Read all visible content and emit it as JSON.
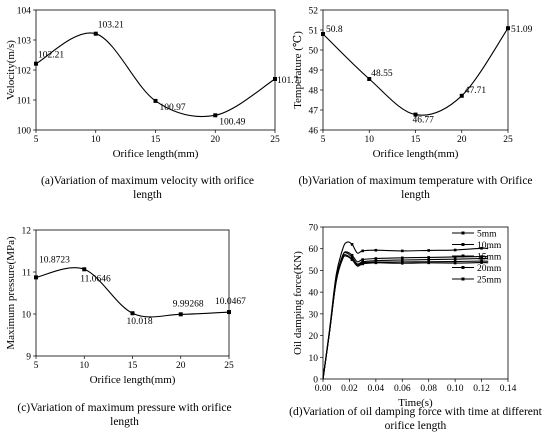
{
  "chart_data": [
    {
      "type": "line",
      "xlabel": "Orifice length(mm)",
      "ylabel": "Velocity(m/s)",
      "caption": [
        "(a)Variation of maximum velocity with orifice",
        "length"
      ],
      "xlim": [
        5,
        25
      ],
      "ylim": [
        100,
        104
      ],
      "xticks": [
        "5",
        "10",
        "15",
        "20",
        "25"
      ],
      "yticks": [
        "100",
        "101",
        "102",
        "103",
        "104"
      ],
      "x": [
        5,
        10,
        15,
        20,
        25
      ],
      "values": [
        102.21,
        103.21,
        100.97,
        100.49,
        101.7
      ],
      "labels": [
        "102.21",
        "103.21",
        "100.97",
        "100.49",
        "101.7"
      ]
    },
    {
      "type": "line",
      "xlabel": "Orifice length(mm)",
      "ylabel": "Temperature (℃)",
      "caption": [
        "(b)Variation of maximum temperature with Orifice",
        "length"
      ],
      "xlim": [
        5,
        25
      ],
      "ylim": [
        46,
        52
      ],
      "xticks": [
        "5",
        "10",
        "15",
        "20",
        "25"
      ],
      "yticks": [
        "46",
        "47",
        "48",
        "49",
        "50",
        "51",
        "52"
      ],
      "x": [
        5,
        10,
        15,
        20,
        25
      ],
      "values": [
        50.8,
        48.55,
        46.77,
        47.71,
        51.09
      ],
      "labels": [
        "50.8",
        "48.55",
        "46.77",
        "47.71",
        "51.09"
      ]
    },
    {
      "type": "line",
      "xlabel": "Orifice length(mm)",
      "ylabel": "Maximum pressure(MPa)",
      "caption": [
        "(c)Variation of maximum pressure with orifice",
        "length"
      ],
      "xlim": [
        5,
        25
      ],
      "ylim": [
        9,
        12
      ],
      "xticks": [
        "5",
        "10",
        "15",
        "20",
        "25"
      ],
      "yticks": [
        "9",
        "10",
        "11",
        "12"
      ],
      "x": [
        5,
        10,
        15,
        20,
        25
      ],
      "values": [
        10.8723,
        11.0646,
        10.018,
        9.99268,
        10.0467
      ],
      "labels": [
        "10.8723",
        "11.0646",
        "10.018",
        "9.99268",
        "10.0467"
      ]
    },
    {
      "type": "line",
      "xlabel": "Time(s)",
      "ylabel": "Oil damping force(KN)",
      "caption": [
        "(d)Variation of oil damping force with time at different",
        "orifice length"
      ],
      "xlim": [
        0,
        0.14
      ],
      "ylim": [
        0,
        70
      ],
      "xticks": [
        "0.00",
        "0.02",
        "0.04",
        "0.06",
        "0.08",
        "0.10",
        "0.12",
        "0.14"
      ],
      "yticks": [
        "0",
        "10",
        "20",
        "30",
        "40",
        "50",
        "60",
        "70"
      ],
      "legend": [
        "5mm",
        "10mm",
        "15mm",
        "20mm",
        "25mm"
      ],
      "legend_position": "top-right",
      "x": [
        0,
        0.005,
        0.01,
        0.015,
        0.018,
        0.022,
        0.026,
        0.03,
        0.04,
        0.06,
        0.08,
        0.1,
        0.12,
        0.125
      ],
      "series": [
        {
          "name": "5mm",
          "values": [
            0,
            22,
            45,
            56,
            57,
            55,
            52,
            53,
            53.5,
            53.3,
            53.5,
            53.4,
            53.6,
            53.5
          ]
        },
        {
          "name": "10mm",
          "values": [
            0,
            23,
            48,
            60,
            63,
            62,
            58,
            59,
            59.3,
            59,
            59.2,
            59.4,
            60.2,
            60
          ]
        },
        {
          "name": "15mm",
          "values": [
            0,
            22,
            46,
            57,
            58,
            56,
            53,
            54,
            54.5,
            54.8,
            55,
            55.2,
            55.5,
            55.4
          ]
        },
        {
          "name": "20mm",
          "values": [
            0,
            22,
            46,
            57,
            58.5,
            57,
            54,
            55,
            55.5,
            55.8,
            56,
            56.2,
            56.4,
            56.3
          ]
        },
        {
          "name": "25mm",
          "values": [
            0,
            22,
            45,
            55.5,
            56.5,
            55,
            52.5,
            53.5,
            53.8,
            53.9,
            54,
            54.1,
            54.3,
            54.2
          ]
        }
      ]
    }
  ]
}
